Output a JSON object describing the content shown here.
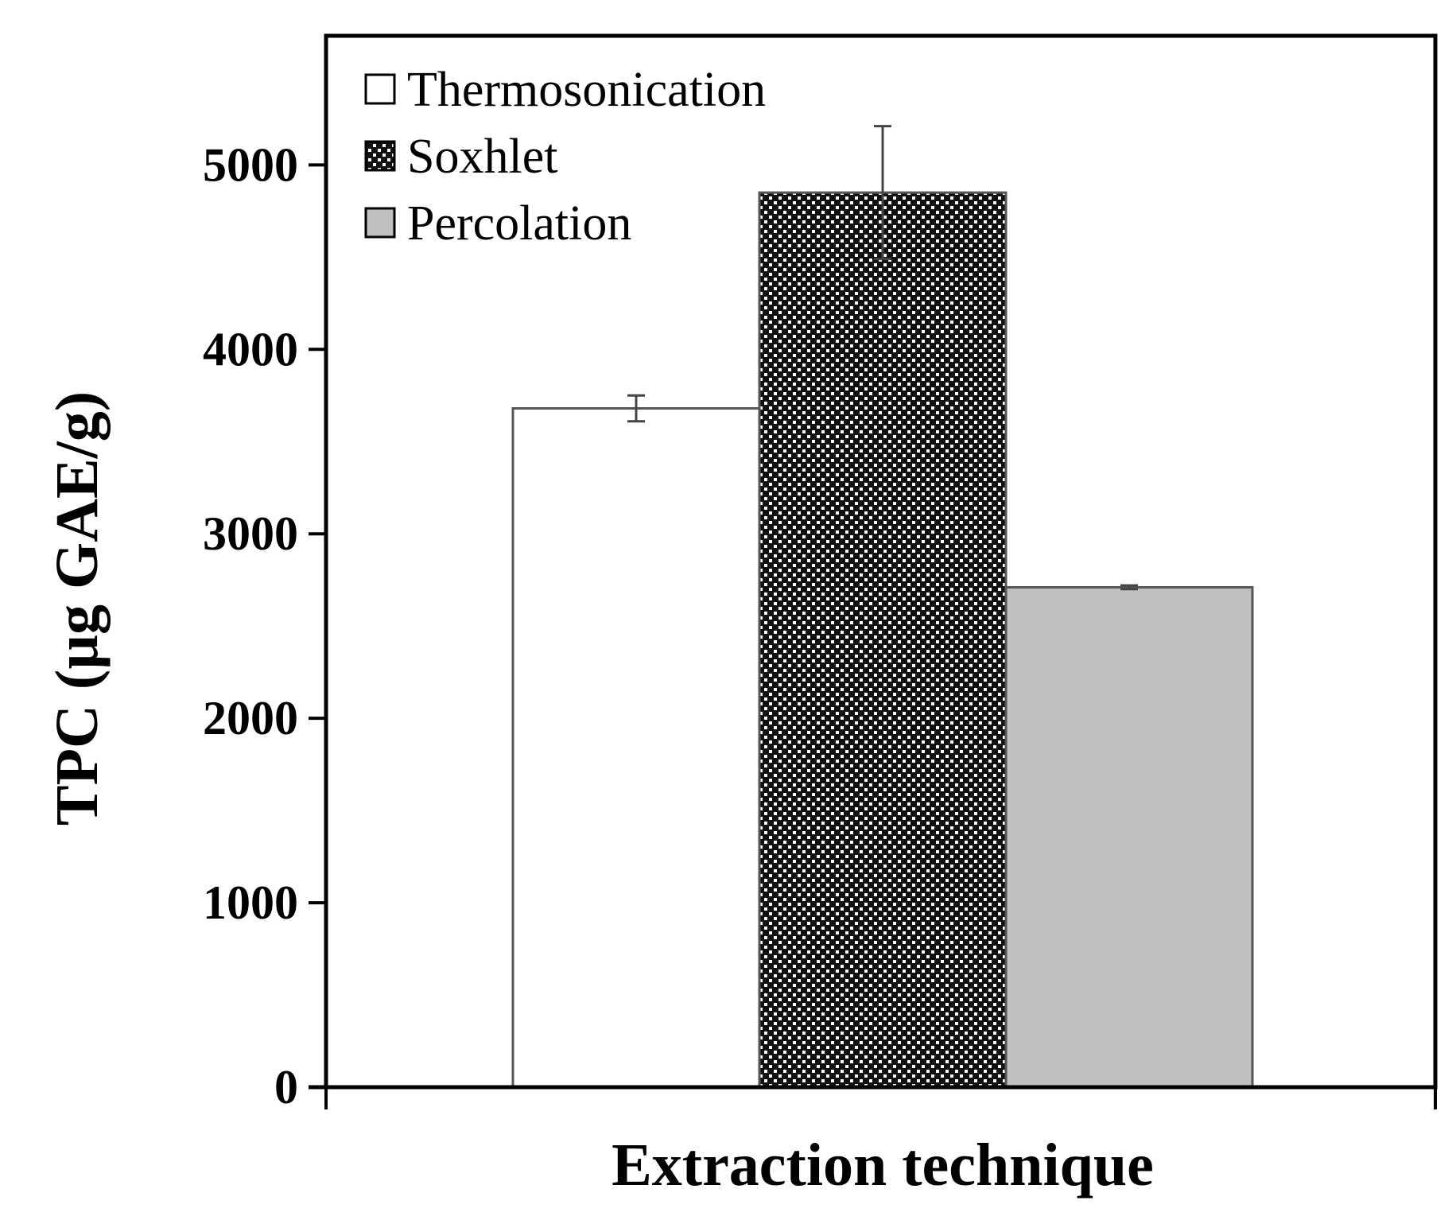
{
  "chart_data": {
    "type": "bar",
    "title": "",
    "xlabel": "Extraction technique",
    "ylabel": "TPC (µg GAE/g)",
    "ylim": [
      0,
      5700
    ],
    "yticks": [
      0,
      1000,
      2000,
      3000,
      4000,
      5000
    ],
    "grid": false,
    "legend_position": "top-left",
    "series": [
      {
        "name": "Thermosonication",
        "value": 3680,
        "error": 70,
        "fill": "#ffffff",
        "pattern": "none"
      },
      {
        "name": "Soxhlet",
        "value": 4850,
        "error": 360,
        "fill": "#ffffff",
        "pattern": "dotted-checker"
      },
      {
        "name": "Percolation",
        "value": 2710,
        "error": 10,
        "fill": "#c0c0c0",
        "pattern": "none"
      }
    ],
    "colors": {
      "axis": "#000000",
      "bar_outline": "#555555",
      "percolation": "#c0c0c0",
      "error_bar": "#444444"
    }
  }
}
